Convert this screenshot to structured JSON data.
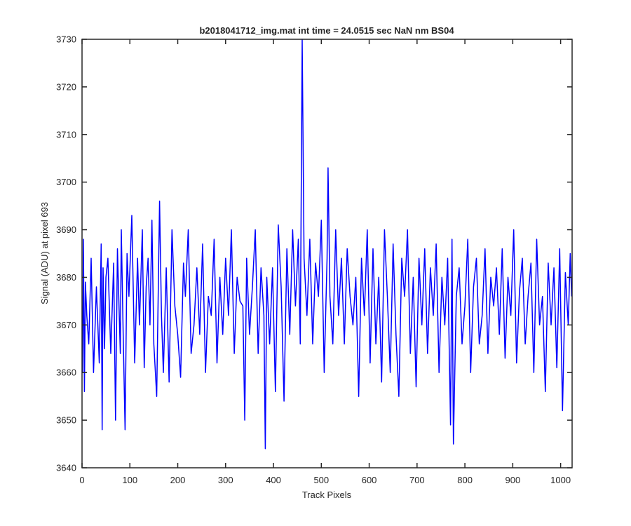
{
  "chart_data": {
    "type": "line",
    "title": "b2018041712_img.mat int time = 24.0515 sec  NaN nm BS04",
    "xlabel": "Track Pixels",
    "ylabel": "Signal (ADU) at pixel 693",
    "xlim": [
      0,
      1024
    ],
    "ylim": [
      3640,
      3730
    ],
    "xticks": [
      0,
      100,
      200,
      300,
      400,
      500,
      600,
      700,
      800,
      900,
      1000
    ],
    "yticks": [
      3640,
      3650,
      3660,
      3670,
      3680,
      3690,
      3700,
      3710,
      3720,
      3730
    ],
    "grid": false,
    "line_color": "#0000ff",
    "series": [
      {
        "x": [
          1,
          3,
          5,
          7,
          10,
          14,
          19,
          24,
          30,
          36,
          40,
          42,
          44,
          47,
          50,
          54,
          60,
          66,
          70,
          74,
          80,
          82,
          86,
          90,
          94,
          98,
          104,
          110,
          116,
          120,
          126,
          130,
          134,
          138,
          142,
          146,
          150,
          156,
          162,
          166,
          170,
          176,
          182,
          188,
          194,
          200,
          206,
          212,
          216,
          222,
          228,
          234,
          240,
          246,
          252,
          258,
          264,
          270,
          276,
          282,
          288,
          294,
          300,
          306,
          312,
          318,
          324,
          330,
          336,
          340,
          344,
          350,
          356,
          362,
          368,
          374,
          380,
          383,
          386,
          392,
          398,
          404,
          410,
          416,
          422,
          428,
          434,
          440,
          446,
          452,
          456,
          460,
          464,
          470,
          476,
          482,
          488,
          494,
          500,
          506,
          512,
          514,
          518,
          524,
          530,
          536,
          542,
          548,
          554,
          560,
          566,
          572,
          578,
          584,
          590,
          596,
          602,
          608,
          614,
          620,
          626,
          632,
          638,
          644,
          650,
          656,
          662,
          668,
          674,
          680,
          686,
          692,
          698,
          704,
          710,
          716,
          722,
          728,
          734,
          740,
          746,
          752,
          758,
          764,
          770,
          773,
          776,
          782,
          788,
          794,
          800,
          806,
          812,
          818,
          824,
          830,
          836,
          842,
          848,
          854,
          860,
          866,
          872,
          878,
          884,
          890,
          896,
          902,
          908,
          914,
          920,
          926,
          932,
          938,
          944,
          950,
          956,
          962,
          968,
          974,
          980,
          986,
          992,
          998,
          1004,
          1010,
          1016,
          1020,
          1023
        ],
        "y": [
          3660,
          3688,
          3656,
          3679,
          3672,
          3666,
          3684,
          3660,
          3678,
          3662,
          3687,
          3648,
          3682,
          3665,
          3680,
          3684,
          3664,
          3683,
          3650,
          3686,
          3664,
          3690,
          3668,
          3648,
          3685,
          3676,
          3693,
          3662,
          3684,
          3670,
          3690,
          3661,
          3678,
          3684,
          3670,
          3692,
          3666,
          3655,
          3696,
          3672,
          3660,
          3682,
          3658,
          3690,
          3674,
          3668,
          3659,
          3683,
          3676,
          3690,
          3664,
          3670,
          3682,
          3668,
          3687,
          3660,
          3676,
          3672,
          3688,
          3662,
          3680,
          3668,
          3684,
          3672,
          3690,
          3664,
          3680,
          3675,
          3674,
          3650,
          3684,
          3668,
          3678,
          3690,
          3664,
          3682,
          3672,
          3644,
          3680,
          3666,
          3682,
          3656,
          3691,
          3678,
          3654,
          3686,
          3668,
          3690,
          3674,
          3688,
          3666,
          3730,
          3684,
          3672,
          3688,
          3666,
          3683,
          3676,
          3692,
          3660,
          3684,
          3703,
          3676,
          3666,
          3690,
          3672,
          3684,
          3666,
          3686,
          3676,
          3670,
          3680,
          3655,
          3684,
          3672,
          3690,
          3662,
          3686,
          3666,
          3680,
          3658,
          3690,
          3676,
          3660,
          3687,
          3668,
          3655,
          3684,
          3676,
          3690,
          3664,
          3680,
          3657,
          3684,
          3670,
          3686,
          3664,
          3682,
          3672,
          3687,
          3660,
          3680,
          3670,
          3684,
          3649,
          3688,
          3645,
          3676,
          3682,
          3666,
          3674,
          3688,
          3660,
          3678,
          3684,
          3666,
          3672,
          3686,
          3664,
          3680,
          3674,
          3682,
          3668,
          3686,
          3663,
          3680,
          3672,
          3690,
          3662,
          3677,
          3684,
          3666,
          3676,
          3683,
          3660,
          3688,
          3670,
          3676,
          3656,
          3683,
          3670,
          3682,
          3661,
          3686,
          3652,
          3681,
          3670,
          3685,
          3676
        ]
      }
    ]
  }
}
